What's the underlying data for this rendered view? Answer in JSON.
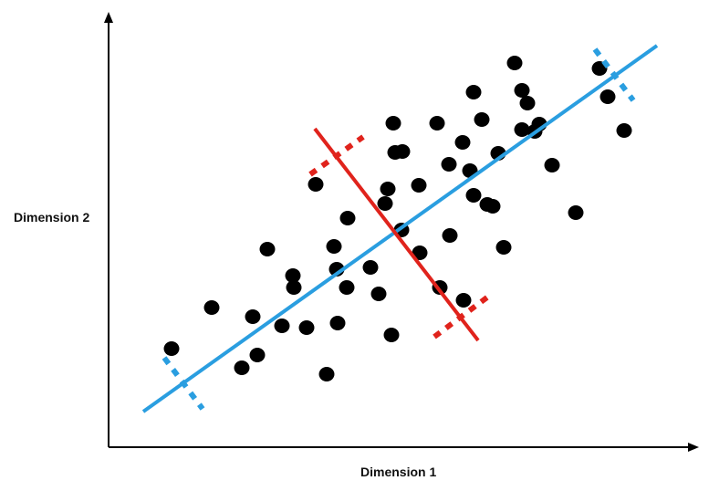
{
  "diagram": {
    "xlabel": "Dimension 1",
    "ylabel": "Dimension 2",
    "colors": {
      "points": "#000000",
      "first_component": "#2a9ee0",
      "second_component": "#e0231c",
      "axes": "#000000"
    }
  }
}
